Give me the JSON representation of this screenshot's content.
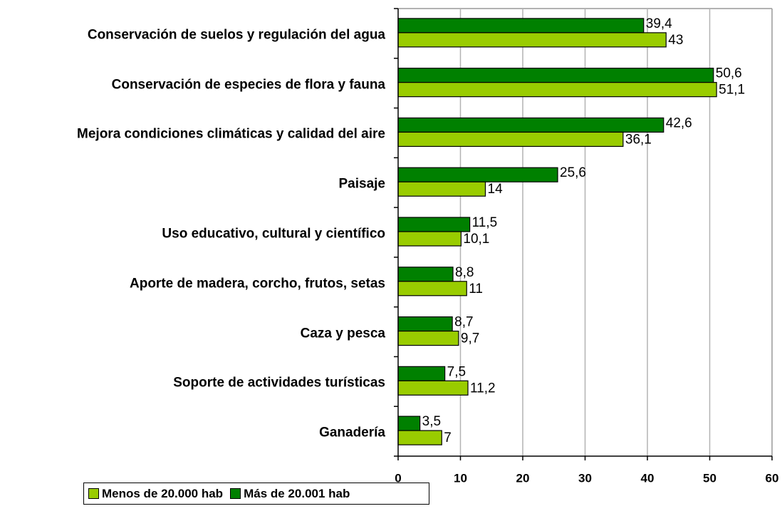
{
  "chart_data": {
    "type": "hbar",
    "categories": [
      "Conservación de suelos y regulación del agua",
      "Conservación de especies de flora y fauna",
      "Mejora condiciones climáticas y calidad del aire",
      "Paisaje",
      "Uso educativo, cultural y científico",
      "Aporte de madera, corcho, frutos, setas",
      "Caza y pesca",
      "Soporte de actividades turísticas",
      "Ganadería"
    ],
    "series": [
      {
        "name": "Menos de 20.000 hab",
        "color": "#99cc00",
        "values": [
          43,
          51.1,
          36.1,
          14,
          10.1,
          11,
          9.7,
          11.2,
          7
        ],
        "value_labels": [
          "43",
          "51,1",
          "36,1",
          "14",
          "10,1",
          "11",
          "9,7",
          "11,2",
          "7"
        ]
      },
      {
        "name": "Más de 20.001 hab",
        "color": "#008000",
        "values": [
          39.4,
          50.6,
          42.6,
          25.6,
          11.5,
          8.8,
          8.7,
          7.5,
          3.5
        ],
        "value_labels": [
          "39,4",
          "50,6",
          "42,6",
          "25,6",
          "11,5",
          "8,8",
          "8,7",
          "7,5",
          "3,5"
        ]
      }
    ],
    "xlim": [
      0,
      60
    ],
    "xticks": [
      0,
      10,
      20,
      30,
      40,
      50,
      60
    ],
    "grid": true,
    "legend": "bottom-left"
  }
}
